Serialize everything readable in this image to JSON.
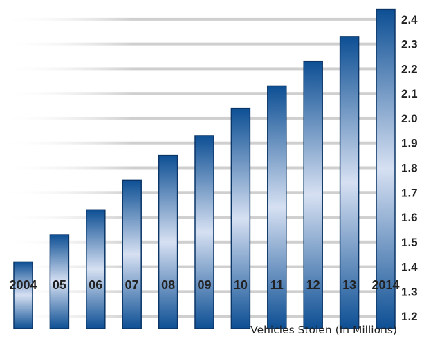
{
  "chart_data": {
    "type": "bar",
    "title": "",
    "xlabel": "Vehicles Stolen (In Millions)",
    "ylabel": "",
    "categories": [
      "2004",
      "05",
      "06",
      "07",
      "08",
      "09",
      "10",
      "11",
      "12",
      "13",
      "2014"
    ],
    "values": [
      1.42,
      1.53,
      1.63,
      1.75,
      1.85,
      1.93,
      2.04,
      2.13,
      2.23,
      2.33,
      2.44
    ],
    "ylim": [
      1.15,
      2.45
    ],
    "yticks": [
      1.2,
      1.3,
      1.4,
      1.5,
      1.6,
      1.7,
      1.8,
      1.9,
      2.0,
      2.1,
      2.2,
      2.3,
      2.4
    ],
    "ytick_labels": [
      "1.2",
      "1.3",
      "1.4",
      "1.5",
      "1.6",
      "1.7",
      "1.8",
      "1.9",
      "2.0",
      "2.1",
      "2.2",
      "2.3",
      "2.4"
    ],
    "y_axis_side": "right",
    "grid": true,
    "legend": "none",
    "colors": {
      "bar_dark": "#0d4f94",
      "bar_light": "#d6e0f2",
      "bar_edge": "#0a3566",
      "grid": "#cfcfcf"
    }
  }
}
